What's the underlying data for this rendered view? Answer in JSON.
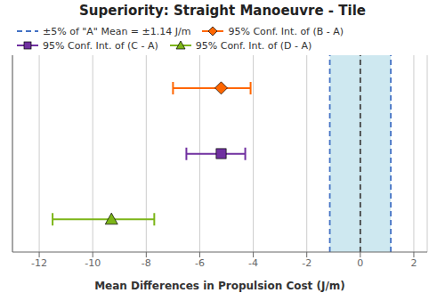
{
  "chart_data": {
    "type": "interval",
    "title": "Superiority: Straight Manoeuvre - Tile",
    "xlabel": "Mean Differences in Propulsion Cost (J/m)",
    "categories": [
      null,
      null,
      null
    ],
    "series": [
      {
        "name": "95% Conf. Int. of (B - A)",
        "color": "#ff6600",
        "marker": "diamond",
        "values": [
          -5.2,
          null,
          null
        ],
        "ci_low": [
          -7.0,
          null,
          null
        ],
        "ci_high": [
          -4.1,
          null,
          null
        ]
      },
      {
        "name": "95% Conf. Int. of (C - A)",
        "color": "#7030a0",
        "marker": "square",
        "values": [
          null,
          -5.2,
          null
        ],
        "ci_low": [
          null,
          -6.5,
          null
        ],
        "ci_high": [
          null,
          -4.3,
          null
        ]
      },
      {
        "name": "95% Conf. Int. of (D - A)",
        "color": "#7cb518",
        "marker": "triangle",
        "values": [
          null,
          null,
          -9.3
        ],
        "ci_low": [
          null,
          null,
          -11.5
        ],
        "ci_high": [
          null,
          null,
          -7.7
        ]
      }
    ],
    "xlim": [
      -13,
      2.5
    ],
    "xticks": [
      -12,
      -10,
      -8,
      -6,
      -4,
      -2,
      0,
      2
    ],
    "band": {
      "range": [
        -1.14,
        1.14
      ],
      "color": "#add8e6"
    },
    "reference_lines": [
      {
        "values": [
          0
        ],
        "color": "#444444",
        "line_style": "dashed"
      },
      {
        "values": [
          -1.14,
          1.14
        ],
        "color": "#4472c4",
        "line_style": "dashed",
        "name": "±5% of \"A\" Mean = ±1.14 J/m"
      }
    ],
    "grid": true,
    "legend": "upper left",
    "tick_labels": "x"
  }
}
